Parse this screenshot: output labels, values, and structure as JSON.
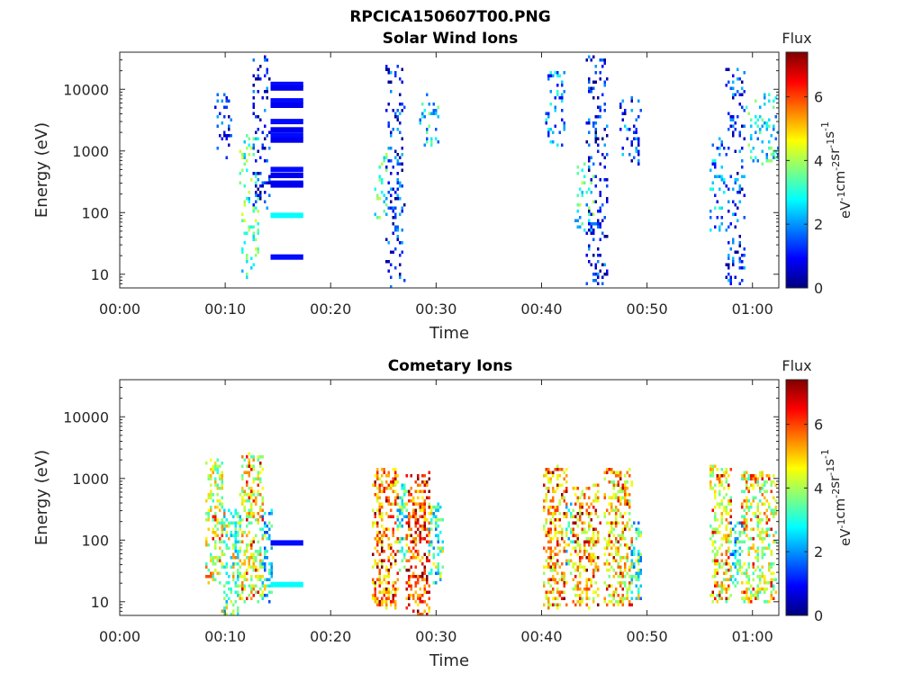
{
  "figure_title": "RPCICA150607T00.PNG",
  "colors": {
    "colormap": [
      "#00007f",
      "#0000ff",
      "#007fff",
      "#00ffff",
      "#7fff7f",
      "#ffff00",
      "#ff7f00",
      "#ff0000",
      "#7f0000"
    ]
  },
  "chart_data": [
    {
      "type": "heatmap",
      "title": "Solar Wind Ions",
      "xlabel": "Time",
      "ylabel": "Energy (eV)",
      "x_ticks": [
        "00:00",
        "00:10",
        "00:20",
        "00:30",
        "00:40",
        "00:50",
        "01:00"
      ],
      "x_tick_minutes": [
        0,
        10,
        20,
        30,
        40,
        50,
        60
      ],
      "xlim_minutes": [
        0,
        62.5
      ],
      "y_scale": "log",
      "y_ticks": [
        "10",
        "100",
        "1000",
        "10000"
      ],
      "y_tick_values": [
        10,
        100,
        1000,
        10000
      ],
      "ylim": [
        6,
        40000
      ],
      "colorbar": {
        "label": "Flux",
        "unit": "eV-1cm-2sr-1s-1",
        "ticks": [
          "0",
          "2",
          "4",
          "6"
        ],
        "tick_values": [
          0,
          2,
          4,
          6
        ],
        "range": [
          0,
          7.4
        ]
      },
      "bursts": [
        {
          "t_start": 9,
          "t_end": 10.5,
          "e_low": 800,
          "e_high": 11000,
          "flux": 1.3
        },
        {
          "t_start": 11.5,
          "t_end": 13.2,
          "e_low": 8,
          "e_high": 1800,
          "flux": 3.2
        },
        {
          "t_start": 12.6,
          "t_end": 14.2,
          "e_low": 100,
          "e_high": 35000,
          "flux": 1.0
        },
        {
          "t_start": 24.2,
          "t_end": 25.3,
          "e_low": 80,
          "e_high": 900,
          "flux": 3.0
        },
        {
          "t_start": 25.3,
          "t_end": 27.0,
          "e_low": 6,
          "e_high": 24000,
          "flux": 1.2
        },
        {
          "t_start": 28.5,
          "t_end": 30.4,
          "e_low": 1200,
          "e_high": 9000,
          "flux": 2.6
        },
        {
          "t_start": 40.5,
          "t_end": 42.3,
          "e_low": 1000,
          "e_high": 20000,
          "flux": 2.0
        },
        {
          "t_start": 43.2,
          "t_end": 45.0,
          "e_low": 50,
          "e_high": 600,
          "flux": 3.0
        },
        {
          "t_start": 44.3,
          "t_end": 46.3,
          "e_low": 6,
          "e_high": 35000,
          "flux": 1.0
        },
        {
          "t_start": 47.5,
          "t_end": 49.5,
          "e_low": 600,
          "e_high": 8000,
          "flux": 1.3
        },
        {
          "t_start": 56.0,
          "t_end": 57.5,
          "e_low": 50,
          "e_high": 1600,
          "flux": 2.0
        },
        {
          "t_start": 57.5,
          "t_end": 59.3,
          "e_low": 6,
          "e_high": 22000,
          "flux": 1.2
        },
        {
          "t_start": 59.5,
          "t_end": 62.5,
          "e_low": 600,
          "e_high": 9000,
          "flux": 2.8
        }
      ],
      "bands": [
        {
          "t_start": 14.3,
          "t_end": 17.4,
          "energy": 12000,
          "flux": 1.0
        },
        {
          "t_start": 14.3,
          "t_end": 17.4,
          "energy": 10500,
          "flux": 0.8
        },
        {
          "t_start": 14.3,
          "t_end": 17.4,
          "energy": 6500,
          "flux": 1.0
        },
        {
          "t_start": 14.3,
          "t_end": 17.4,
          "energy": 5500,
          "flux": 0.8
        },
        {
          "t_start": 14.3,
          "t_end": 17.4,
          "energy": 3000,
          "flux": 1.0
        },
        {
          "t_start": 14.3,
          "t_end": 17.4,
          "energy": 2200,
          "flux": 0.8
        },
        {
          "t_start": 14.3,
          "t_end": 17.4,
          "energy": 1800,
          "flux": 1.0
        },
        {
          "t_start": 14.3,
          "t_end": 17.4,
          "energy": 1500,
          "flux": 0.8
        },
        {
          "t_start": 14.3,
          "t_end": 17.4,
          "energy": 500,
          "flux": 1.0
        },
        {
          "t_start": 14.3,
          "t_end": 17.4,
          "energy": 400,
          "flux": 0.8
        },
        {
          "t_start": 14.3,
          "t_end": 17.4,
          "energy": 300,
          "flux": 1.0
        },
        {
          "t_start": 14.3,
          "t_end": 17.4,
          "energy": 280,
          "flux": 0.8
        },
        {
          "t_start": 14.3,
          "t_end": 17.4,
          "energy": 90,
          "flux": 2.8
        },
        {
          "t_start": 14.3,
          "t_end": 17.4,
          "energy": 19,
          "flux": 1.0
        }
      ]
    },
    {
      "type": "heatmap",
      "title": "Cometary Ions",
      "xlabel": "Time",
      "ylabel": "Energy (eV)",
      "x_ticks": [
        "00:00",
        "00:10",
        "00:20",
        "00:30",
        "00:40",
        "00:50",
        "01:00"
      ],
      "x_tick_minutes": [
        0,
        10,
        20,
        30,
        40,
        50,
        60
      ],
      "xlim_minutes": [
        0,
        62.5
      ],
      "y_scale": "log",
      "y_ticks": [
        "10",
        "100",
        "1000",
        "10000"
      ],
      "y_tick_values": [
        10,
        100,
        1000,
        10000
      ],
      "ylim": [
        6,
        40000
      ],
      "colorbar": {
        "label": "Flux",
        "unit": "eV-1cm-2sr-1s-1",
        "ticks": [
          "0",
          "2",
          "4",
          "6"
        ],
        "tick_values": [
          0,
          2,
          4,
          6
        ],
        "range": [
          0,
          7.4
        ]
      },
      "bursts": [
        {
          "t_start": 8.2,
          "t_end": 9.8,
          "e_low": 20,
          "e_high": 2000,
          "flux": 4.2
        },
        {
          "t_start": 9.8,
          "t_end": 11.5,
          "e_low": 6,
          "e_high": 300,
          "flux": 3.3
        },
        {
          "t_start": 11.5,
          "t_end": 13.6,
          "e_low": 10,
          "e_high": 2500,
          "flux": 4.5
        },
        {
          "t_start": 13.6,
          "t_end": 14.5,
          "e_low": 10,
          "e_high": 300,
          "flux": 2.6
        },
        {
          "t_start": 24.0,
          "t_end": 26.4,
          "e_low": 8,
          "e_high": 1500,
          "flux": 5.3
        },
        {
          "t_start": 26.4,
          "t_end": 27.2,
          "e_low": 30,
          "e_high": 800,
          "flux": 3.0
        },
        {
          "t_start": 27.2,
          "t_end": 29.4,
          "e_low": 6,
          "e_high": 1200,
          "flux": 5.8
        },
        {
          "t_start": 29.4,
          "t_end": 30.6,
          "e_low": 20,
          "e_high": 400,
          "flux": 2.8
        },
        {
          "t_start": 40.2,
          "t_end": 42.4,
          "e_low": 8,
          "e_high": 1500,
          "flux": 5.0
        },
        {
          "t_start": 42.4,
          "t_end": 43.0,
          "e_low": 30,
          "e_high": 400,
          "flux": 3.0
        },
        {
          "t_start": 43.0,
          "t_end": 45.5,
          "e_low": 8,
          "e_high": 800,
          "flux": 5.0
        },
        {
          "t_start": 46.0,
          "t_end": 48.5,
          "e_low": 8,
          "e_high": 1500,
          "flux": 4.8
        },
        {
          "t_start": 48.5,
          "t_end": 49.5,
          "e_low": 10,
          "e_high": 200,
          "flux": 2.8
        },
        {
          "t_start": 56.0,
          "t_end": 58.0,
          "e_low": 10,
          "e_high": 1500,
          "flux": 4.5
        },
        {
          "t_start": 58.0,
          "t_end": 59.0,
          "e_low": 15,
          "e_high": 200,
          "flux": 2.6
        },
        {
          "t_start": 59.0,
          "t_end": 62.3,
          "e_low": 10,
          "e_high": 1300,
          "flux": 4.2
        }
      ],
      "bands": [
        {
          "t_start": 14.3,
          "t_end": 17.4,
          "energy": 90,
          "flux": 1.0
        },
        {
          "t_start": 14.3,
          "t_end": 17.4,
          "energy": 19,
          "flux": 2.8
        }
      ]
    }
  ]
}
